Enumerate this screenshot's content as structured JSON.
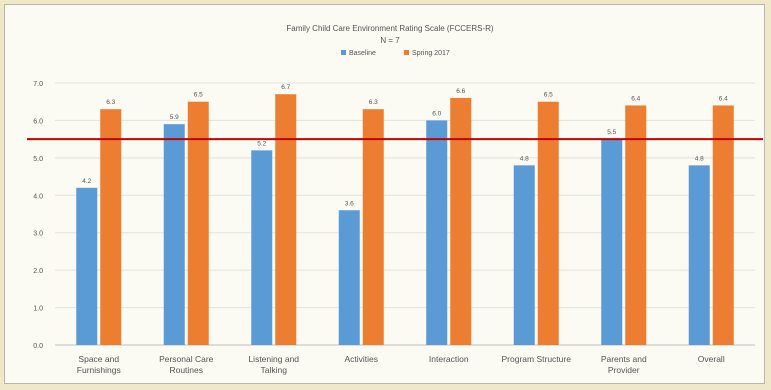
{
  "chart_data": {
    "type": "bar",
    "title": "Family Child Care Environment Rating Scale (FCCERS-R)",
    "subtitle": "N = 7",
    "categories": [
      [
        "Space and",
        "Furnishings"
      ],
      [
        "Personal Care",
        "Routines"
      ],
      [
        "Listening and",
        "Talking"
      ],
      [
        "Activities"
      ],
      [
        "Interaction"
      ],
      [
        "Program Structure"
      ],
      [
        "Parents and",
        "Provider"
      ],
      [
        "Overall"
      ]
    ],
    "series": [
      {
        "name": "Baseline",
        "color": "#5b9bd5",
        "values": [
          4.2,
          5.9,
          5.2,
          3.6,
          6.0,
          4.8,
          5.5,
          4.8
        ]
      },
      {
        "name": "Spring 2017",
        "color": "#ed7d31",
        "values": [
          6.3,
          6.5,
          6.7,
          6.3,
          6.6,
          6.5,
          6.4,
          6.4
        ]
      }
    ],
    "data_labels": [
      [
        "4.2",
        "5.9",
        "5.2",
        "3.6",
        "6.0",
        "4.8",
        "5.5",
        "4.8"
      ],
      [
        "6.3",
        "6.5",
        "6.7",
        "6.3",
        "6.6",
        "6.5",
        "6.4",
        "6.4"
      ]
    ],
    "yticks": [
      "0.0",
      "1.0",
      "2.0",
      "3.0",
      "4.0",
      "5.0",
      "6.0",
      "7.0"
    ],
    "ylim": [
      0,
      7
    ],
    "reference_line": {
      "value": 5.5,
      "color": "#c00000"
    },
    "grid": true,
    "legend_position": "top-center"
  }
}
